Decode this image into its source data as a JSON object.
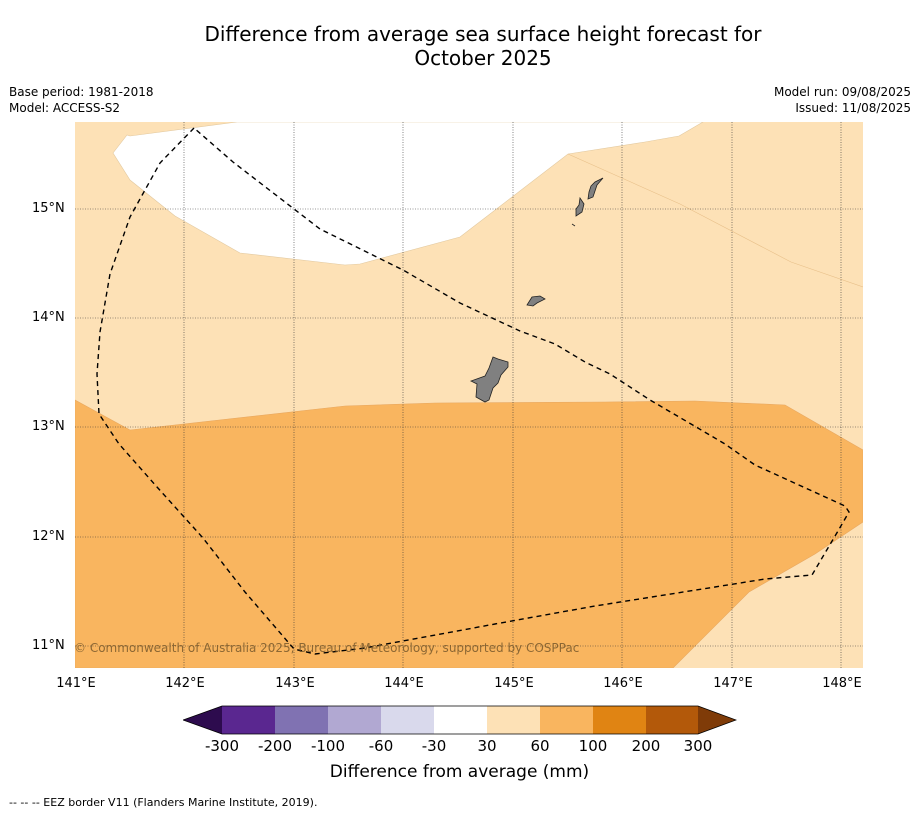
{
  "title_line1": "Difference from average sea surface height forecast for",
  "title_line2": "October 2025",
  "meta": {
    "base_period": "Base period: 1981-2018",
    "model": "Model: ACCESS-S2",
    "model_run": "Model run: 09/08/2025",
    "issued": "Issued: 11/08/2025"
  },
  "map": {
    "lat_labels": [
      "15°N",
      "14°N",
      "13°N",
      "12°N",
      "11°N"
    ],
    "lon_labels": [
      "141°E",
      "142°E",
      "143°E",
      "144°E",
      "145°E",
      "146°E",
      "147°E",
      "148°E"
    ],
    "copyright": "© Commonwealth of Australia 2025, Bureau of Meteorology, supported by COSPPac",
    "fill_colors": {
      "light": "#fde1b6",
      "mid": "#f9b55f",
      "white": "#ffffff",
      "land": "#808080"
    }
  },
  "colorbar": {
    "ticks": [
      "-300",
      "-200",
      "-100",
      "-60",
      "-30",
      "30",
      "60",
      "100",
      "200",
      "300"
    ],
    "colors": [
      "#2d0b4e",
      "#5a2790",
      "#8072b2",
      "#b1a8d2",
      "#d9d9ec",
      "#ffffff",
      "#fde1b6",
      "#f9b55f",
      "#e08413",
      "#b3590a",
      "#7f3b08"
    ],
    "label": "Difference from average (mm)"
  },
  "footnote": "--  --  -- EEZ border V11 (Flanders Marine Institute, 2019)."
}
